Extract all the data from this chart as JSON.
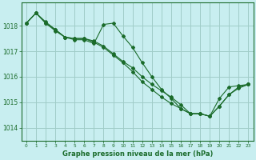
{
  "xlabel": "Graphe pression niveau de la mer (hPa)",
  "bg_color": "#c8eef0",
  "grid_color": "#a0ccc8",
  "line_color": "#1a6b2a",
  "xlim": [
    -0.5,
    23.5
  ],
  "ylim": [
    1013.5,
    1018.9
  ],
  "yticks": [
    1014,
    1015,
    1016,
    1017,
    1018
  ],
  "xticks": [
    0,
    1,
    2,
    3,
    4,
    5,
    6,
    7,
    8,
    9,
    10,
    11,
    12,
    13,
    14,
    15,
    16,
    17,
    18,
    19,
    20,
    21,
    22,
    23
  ],
  "series": [
    [
      1018.1,
      1018.5,
      1018.1,
      1017.8,
      1017.55,
      1017.45,
      1017.45,
      1017.3,
      1018.05,
      1018.1,
      1017.6,
      1017.15,
      1016.55,
      1016.0,
      1015.5,
      1015.15,
      1014.75,
      1014.55,
      1014.55,
      1014.45,
      1014.85,
      1015.3,
      1015.6,
      1015.7
    ],
    [
      1018.1,
      1018.5,
      1018.15,
      1017.85,
      1017.55,
      1017.5,
      1017.5,
      1017.4,
      1017.2,
      1016.9,
      1016.6,
      1016.35,
      1016.0,
      1015.7,
      1015.45,
      1015.2,
      1014.9,
      1014.55,
      1014.55,
      1014.45,
      1015.15,
      1015.6,
      1015.65,
      1015.7
    ],
    [
      1018.1,
      1018.5,
      1018.1,
      1017.85,
      1017.55,
      1017.5,
      1017.5,
      1017.35,
      1017.15,
      1016.85,
      1016.55,
      1016.2,
      1015.8,
      1015.5,
      1015.2,
      1014.95,
      1014.75,
      1014.55,
      1014.55,
      1014.45,
      1014.85,
      1015.3,
      1015.55,
      1015.7
    ]
  ],
  "ytick_fontsize": 5.5,
  "xtick_fontsize": 4.2,
  "xlabel_fontsize": 6.0
}
